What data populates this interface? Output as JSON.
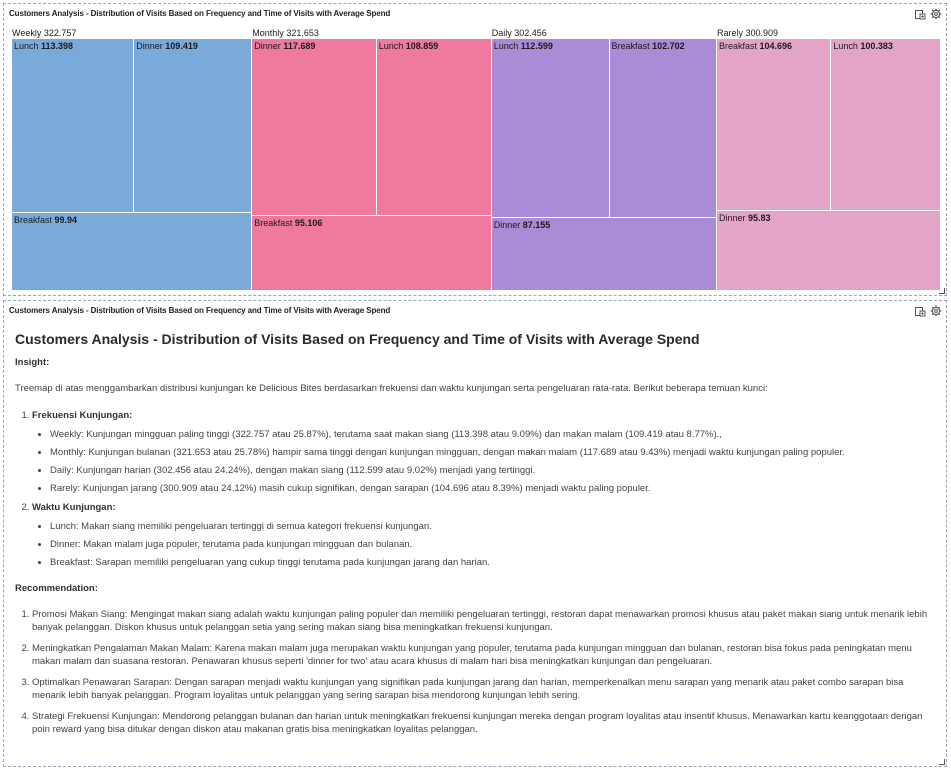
{
  "panel_top": {
    "header": "Customers Analysis - Distribution of Visits Based on Frequency and Time of Visits with Average Spend",
    "tools": [
      "export-icon",
      "settings-icon"
    ]
  },
  "panel_bottom": {
    "header": "Customers Analysis - Distribution of Visits Based on Frequency and Time of Visits with Average Spend",
    "tools": [
      "export-icon",
      "settings-icon"
    ],
    "title": "Customers Analysis - Distribution of Visits Based on Frequency and Time of Visits with Average Spend",
    "insight_label": "Insight:",
    "intro": "Treemap di atas menggambarkan distribusi kunjungan ke Delicious Bites berdasarkan frekuensi dan waktu kunjungan serta pengeluaran rata-rata. Berikut beberapa temuan kunci:",
    "findings": [
      {
        "title": "Frekuensi Kunjungan:",
        "bullets": [
          "Weekly: Kunjungan mingguan paling tinggi (322.757 atau 25.87%), terutama saat makan siang (113.398 atau 9.09%) dan makan malam (109.419 atau 8.77%).,",
          "Monthly: Kunjungan bulanan (321.653 atau 25.78%) hampir sama tinggi dengan kunjungan mingguan, dengan makan malam (117.689 atau 9.43%) menjadi waktu kunjungan paling populer.",
          "Daily: Kunjungan harian (302.456 atau 24.24%), dengan makan siang (112.599 atau 9.02%) menjadi yang tertinggi.",
          "Rarely: Kunjungan jarang (300.909 atau 24.12%) masih cukup signifikan, dengan sarapan (104.696 atau 8.39%) menjadi waktu paling populer."
        ]
      },
      {
        "title": "Waktu Kunjungan:",
        "bullets": [
          "Lunch: Makan siang memiliki pengeluaran tertinggi di semua kategori frekuensi kunjungan.",
          "Dinner: Makan malam juga populer, terutama pada kunjungan mingguan dan bulanan.",
          "Breakfast: Sarapan memiliki pengeluaran yang cukup tinggi terutama pada kunjungan jarang dan harian."
        ]
      }
    ],
    "recommendation_label": "Recommendation:",
    "recommendations": [
      "Promosi Makan Siang: Mengingat makan siang adalah waktu kunjungan paling populer dan memiliki pengeluaran tertinggi, restoran dapat menawarkan promosi khusus atau paket makan siang untuk menarik lebih banyak pelanggan. Diskon khusus untuk pelanggan setia yang sering makan siang bisa meningkatkan frekuensi kunjungan.",
      "Meningkatkan Pengalaman Makan Malam: Karena makan malam juga merupakan waktu kunjungan yang populer, terutama pada kunjungan mingguan dan bulanan, restoran bisa fokus pada peningkatan menu makan malam dan suasana restoran. Penawaran khusus seperti 'dinner for two' atau acara khusus di malam hari bisa meningkatkan kunjungan dan pengeluaran.",
      "Optimalkan Penawaran Sarapan: Dengan sarapan menjadi waktu kunjungan yang signifikan pada kunjungan jarang dan harian, memperkenalkan menu sarapan yang menarik atau paket combo sarapan bisa menarik lebih banyak pelanggan. Program loyalitas untuk pelanggan yang sering sarapan bisa mendorong kunjungan lebih sering.",
      "Strategi Frekuensi Kunjungan: Mendorong pelanggan bulanan dan harian untuk meningkatkan frekuensi kunjungan mereka dengan program loyalitas atau insentif khusus. Menawarkan kartu keanggotaan dengan poin reward yang bisa ditukar dengan diskon atau makanan gratis bisa meningkatkan loyalitas pelanggan."
    ]
  },
  "chart_data": {
    "type": "treemap",
    "title": "",
    "groups": [
      {
        "name": "Weekly",
        "value_label": "322.757",
        "value": 322.757,
        "color": "#7aaad9",
        "children": [
          {
            "name": "Lunch",
            "value_label": "113.398",
            "value": 113.398
          },
          {
            "name": "Dinner",
            "value_label": "109.419",
            "value": 109.419
          },
          {
            "name": "Breakfast",
            "value_label": "99.94",
            "value": 99.94
          }
        ]
      },
      {
        "name": "Monthly",
        "value_label": "321.653",
        "value": 321.653,
        "color": "#f07a9e",
        "children": [
          {
            "name": "Dinner",
            "value_label": "117.689",
            "value": 117.689
          },
          {
            "name": "Lunch",
            "value_label": "108.859",
            "value": 108.859
          },
          {
            "name": "Breakfast",
            "value_label": "95.106",
            "value": 95.106
          }
        ]
      },
      {
        "name": "Daily",
        "value_label": "302.456",
        "value": 302.456,
        "color": "#a98bd6",
        "children": [
          {
            "name": "Lunch",
            "value_label": "112.599",
            "value": 112.599
          },
          {
            "name": "Breakfast",
            "value_label": "102.702",
            "value": 102.702
          },
          {
            "name": "Dinner",
            "value_label": "87.155",
            "value": 87.155
          }
        ]
      },
      {
        "name": "Rarely",
        "value_label": "300.909",
        "value": 300.909,
        "color": "#e4a4c8",
        "children": [
          {
            "name": "Breakfast",
            "value_label": "104.696",
            "value": 104.696
          },
          {
            "name": "Lunch",
            "value_label": "100.383",
            "value": 100.383
          },
          {
            "name": "Dinner",
            "value_label": "95.83",
            "value": 95.83
          }
        ]
      }
    ]
  }
}
